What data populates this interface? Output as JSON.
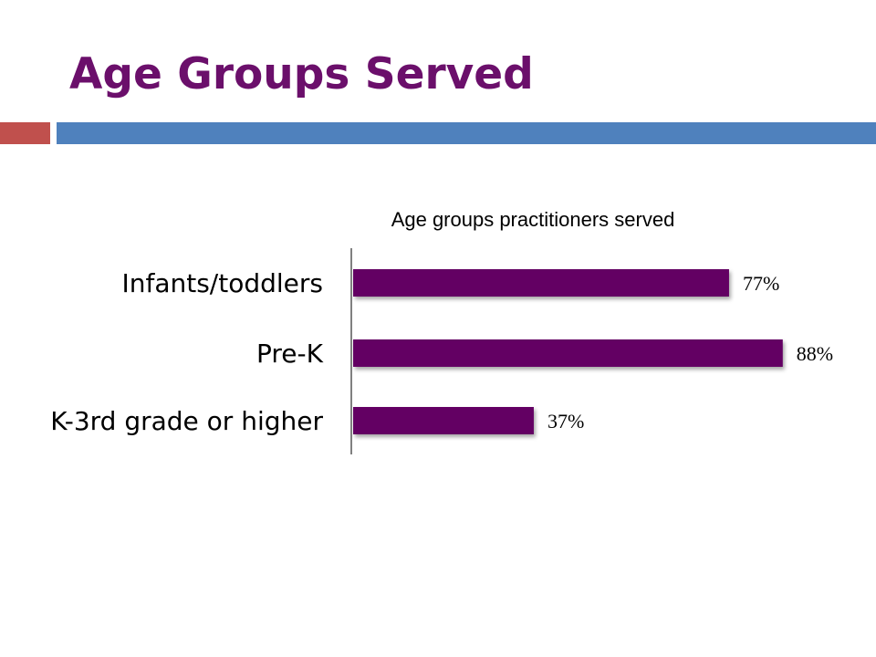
{
  "slide": {
    "title": "Age Groups Served"
  },
  "colors": {
    "title": "#6b0f6b",
    "accent_red": "#c0504d",
    "accent_blue": "#4f81bd",
    "bar": "#630063",
    "axis": "#808080"
  },
  "chart_data": {
    "type": "bar",
    "orientation": "horizontal",
    "title": "Age groups practitioners served",
    "categories": [
      "Infants/toddlers",
      "Pre-K",
      "K-3rd grade or higher"
    ],
    "values": [
      77,
      88,
      37
    ],
    "value_labels": [
      "77%",
      "88%",
      "37%"
    ],
    "xlim": [
      0,
      100
    ],
    "grid": false,
    "legend": "none"
  }
}
